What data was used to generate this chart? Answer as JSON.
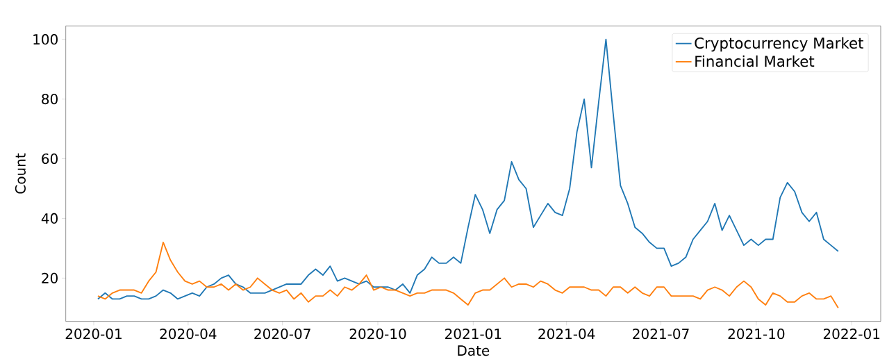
{
  "chart_data": {
    "type": "line",
    "xlabel": "Date",
    "ylabel": "Count",
    "x": [
      "2020-01-05",
      "2020-01-12",
      "2020-01-19",
      "2020-01-26",
      "2020-02-02",
      "2020-02-09",
      "2020-02-16",
      "2020-02-23",
      "2020-03-01",
      "2020-03-08",
      "2020-03-15",
      "2020-03-22",
      "2020-03-29",
      "2020-04-05",
      "2020-04-12",
      "2020-04-19",
      "2020-04-26",
      "2020-05-03",
      "2020-05-10",
      "2020-05-17",
      "2020-05-24",
      "2020-05-31",
      "2020-06-07",
      "2020-06-14",
      "2020-06-21",
      "2020-06-28",
      "2020-07-05",
      "2020-07-12",
      "2020-07-19",
      "2020-07-26",
      "2020-08-02",
      "2020-08-09",
      "2020-08-16",
      "2020-08-23",
      "2020-08-30",
      "2020-09-06",
      "2020-09-13",
      "2020-09-20",
      "2020-09-27",
      "2020-10-04",
      "2020-10-11",
      "2020-10-18",
      "2020-10-25",
      "2020-11-01",
      "2020-11-08",
      "2020-11-15",
      "2020-11-22",
      "2020-11-29",
      "2020-12-06",
      "2020-12-13",
      "2020-12-20",
      "2020-12-27",
      "2021-01-03",
      "2021-01-10",
      "2021-01-17",
      "2021-01-24",
      "2021-01-31",
      "2021-02-07",
      "2021-02-14",
      "2021-02-21",
      "2021-02-28",
      "2021-03-07",
      "2021-03-14",
      "2021-03-21",
      "2021-03-28",
      "2021-04-04",
      "2021-04-11",
      "2021-04-18",
      "2021-04-25",
      "2021-05-02",
      "2021-05-09",
      "2021-05-16",
      "2021-05-23",
      "2021-05-30",
      "2021-06-06",
      "2021-06-13",
      "2021-06-20",
      "2021-06-27",
      "2021-07-04",
      "2021-07-11",
      "2021-07-18",
      "2021-07-25",
      "2021-08-01",
      "2021-08-08",
      "2021-08-15",
      "2021-08-22",
      "2021-08-29",
      "2021-09-05",
      "2021-09-12",
      "2021-09-19",
      "2021-09-26",
      "2021-10-03",
      "2021-10-10",
      "2021-10-17",
      "2021-10-24",
      "2021-10-31",
      "2021-11-07",
      "2021-11-14",
      "2021-11-21",
      "2021-11-28",
      "2021-12-05",
      "2021-12-12",
      "2021-12-19"
    ],
    "series": [
      {
        "name": "Cryptocurrency Market",
        "color": "#1f77b4",
        "values": [
          13,
          15,
          13,
          13,
          14,
          14,
          13,
          13,
          14,
          16,
          15,
          13,
          14,
          15,
          14,
          17,
          18,
          20,
          21,
          18,
          17,
          15,
          15,
          15,
          16,
          17,
          18,
          18,
          18,
          21,
          23,
          21,
          24,
          19,
          20,
          19,
          18,
          19,
          17,
          17,
          17,
          16,
          18,
          15,
          21,
          23,
          27,
          25,
          25,
          27,
          25,
          37,
          48,
          43,
          35,
          43,
          46,
          59,
          53,
          50,
          37,
          41,
          45,
          42,
          41,
          50,
          69,
          80,
          57,
          79,
          100,
          75,
          51,
          45,
          37,
          35,
          32,
          30,
          30,
          24,
          25,
          27,
          33,
          36,
          39,
          45,
          36,
          41,
          36,
          31,
          33,
          31,
          33,
          33,
          47,
          52,
          49,
          42,
          39,
          42,
          33,
          31,
          29
        ]
      },
      {
        "name": "Financial Market",
        "color": "#ff7f0e",
        "values": [
          14,
          13,
          15,
          16,
          16,
          16,
          15,
          19,
          22,
          32,
          26,
          22,
          19,
          18,
          19,
          17,
          17,
          18,
          16,
          18,
          16,
          17,
          20,
          18,
          16,
          15,
          16,
          13,
          15,
          12,
          14,
          14,
          16,
          14,
          17,
          16,
          18,
          21,
          16,
          17,
          16,
          16,
          15,
          14,
          15,
          15,
          16,
          16,
          16,
          15,
          13,
          11,
          15,
          16,
          16,
          18,
          20,
          17,
          18,
          18,
          17,
          19,
          18,
          16,
          15,
          17,
          17,
          17,
          16,
          16,
          14,
          17,
          17,
          15,
          17,
          15,
          14,
          17,
          17,
          14,
          14,
          14,
          14,
          13,
          16,
          17,
          16,
          14,
          17,
          19,
          17,
          13,
          11,
          15,
          14,
          12,
          12,
          14,
          15,
          13,
          13,
          14,
          10
        ]
      }
    ],
    "xlim": [
      "2019-12-05",
      "2022-01-29"
    ],
    "ylim": [
      5.5,
      104.5
    ],
    "xticks": [
      "2020-01",
      "2020-04",
      "2020-07",
      "2020-10",
      "2021-01",
      "2021-04",
      "2021-07",
      "2021-10",
      "2022-01"
    ],
    "yticks": [
      20,
      40,
      60,
      80,
      100
    ],
    "grid": false,
    "legend": "top right",
    "marker": "none",
    "line_style": "solid"
  }
}
